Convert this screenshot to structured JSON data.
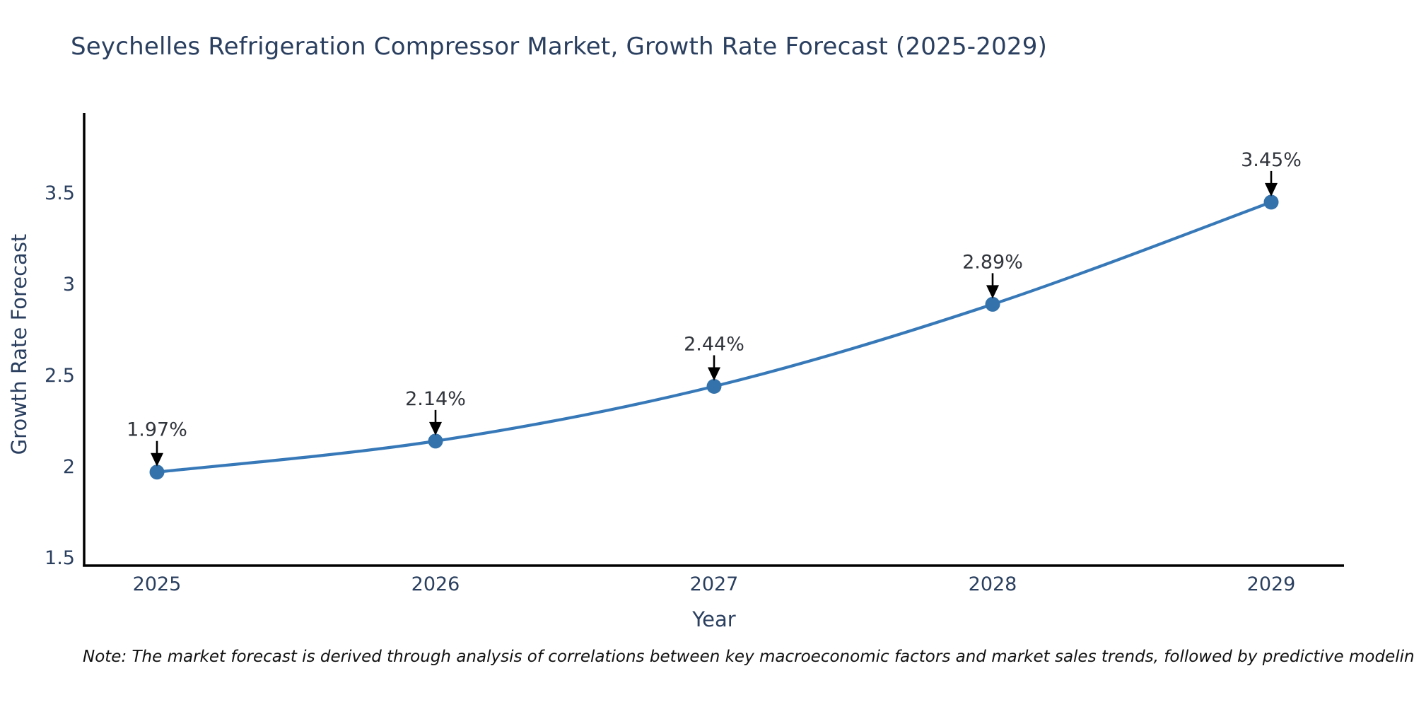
{
  "chart_data": {
    "type": "line",
    "title": "Seychelles Refrigeration Compressor Market, Growth Rate Forecast (2025-2029)",
    "xlabel": "Year",
    "ylabel": "Growth Rate Forecast",
    "x": [
      2025,
      2026,
      2027,
      2028,
      2029
    ],
    "series": [
      {
        "name": "Growth Rate Forecast",
        "values": [
          1.97,
          2.14,
          2.44,
          2.89,
          3.45
        ]
      }
    ],
    "point_labels": [
      "1.97%",
      "2.14%",
      "2.44%",
      "2.89%",
      "3.45%"
    ],
    "xtick_labels": [
      "2025",
      "2026",
      "2027",
      "2028",
      "2029"
    ],
    "yticks": [
      1.5,
      2,
      2.5,
      3,
      3.5
    ],
    "ytick_labels": [
      "1.5",
      "2",
      "2.5",
      "3",
      "3.5"
    ],
    "ylim": [
      1.45,
      3.95
    ],
    "grid": false,
    "legend_position": "none",
    "line_shape": "spline",
    "annotation_arrows": "down-to-point",
    "colors": {
      "line": "#3779b8",
      "marker": "#3472ab",
      "axis": "#000000",
      "text": "#2a3f5f",
      "annotation": "#31353c",
      "note": "#111111"
    },
    "note": "Note: The market forecast is derived through analysis of correlations between key macroeconomic factors and market sales trends, followed by predictive modeling to project future sales"
  }
}
